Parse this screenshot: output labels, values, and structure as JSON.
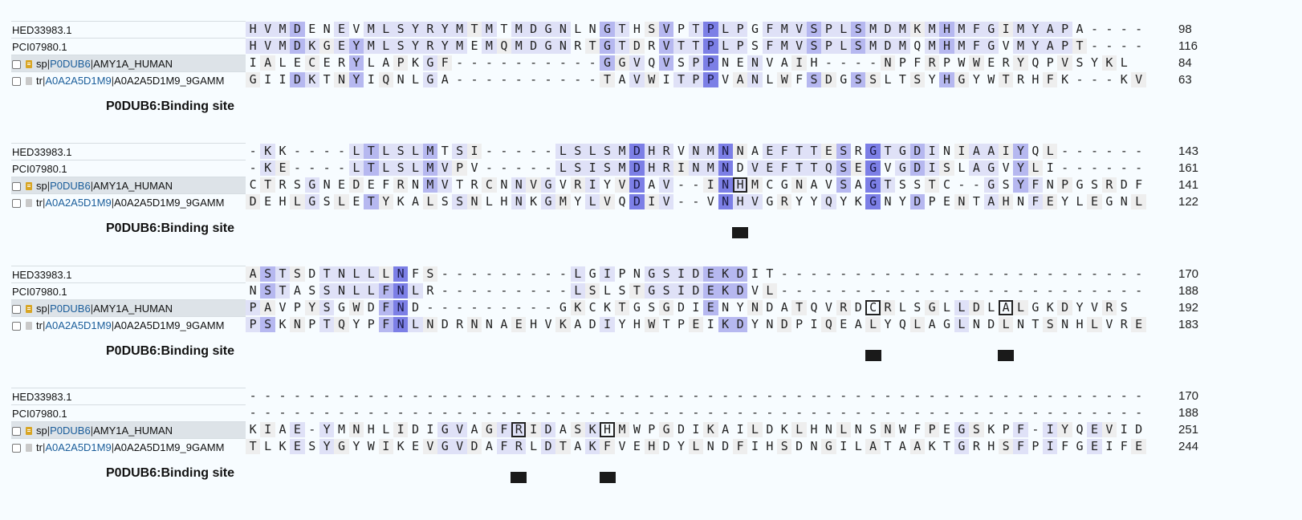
{
  "binding_site_label": "P0DUB6:Binding site",
  "blocks": [
    {
      "rows": [
        {
          "type": "plain",
          "label": "HED33983.1",
          "seq": "HVMDENEVMLSYRYMTMTMDGNLNGTHSVPTPLPGFMVSPLSMDMKMHMFGIMYAPA----",
          "end": "98"
        },
        {
          "type": "plain",
          "label": "PCI07980.1",
          "seq": "HVMDKGEYMLSYRYMEMQMDGNRTGTDRVTTPLPSFMVSPLSMDMQMHMFGVMYAPT----",
          "end": "116"
        },
        {
          "type": "sp",
          "db": "sp",
          "acc": "P0DUB6",
          "name": "AMY1A_HUMAN",
          "seq": "IALECERYLAPKGF----------GGVQVSPPNENVAIH----NPFRPWWERYQPVSYKL",
          "end": "84"
        },
        {
          "type": "tr",
          "db": "tr",
          "acc": "A0A2A5D1M9",
          "name": "A0A2A5D1M9_9GAMM",
          "seq": "GIIDKTNYIQNLGA----------TAVWITPPVANLWFSDGSSLTSYHGYWTRHFK---KV",
          "end": "63"
        }
      ],
      "marks": []
    },
    {
      "rows": [
        {
          "type": "plain",
          "label": "HED33983.1",
          "seq": "-KK----LTLSLMTSI-----LSLSMDHRVNMNNAEFTTESRGTGDINIAAIYQL------",
          "end": "143"
        },
        {
          "type": "plain",
          "label": "PCI07980.1",
          "seq": "-KE----LTLSLMVPV-----LSISMDHRINMNDVEFTTQSEGVGDISLAGVYLI------",
          "end": "161"
        },
        {
          "type": "sp",
          "db": "sp",
          "acc": "P0DUB6",
          "name": "AMY1A_HUMAN",
          "seq": "CTRSGNEDEFRNMVTRCNNVGVRIYVDAV--INHMCGNAVSAGTSSTC--GSYFNPGSRDF",
          "end": "141"
        },
        {
          "type": "tr",
          "db": "tr",
          "acc": "A0A2A5D1M9",
          "name": "A0A2A5D1M9_9GAMM",
          "seq": "DEHLGSLETYKALSSNLHNKGMYLVQDIV--VNHVGRYYQYKGNYDPENTAHNFEYLEGNL",
          "end": "122"
        }
      ],
      "marks": [
        33
      ]
    },
    {
      "rows": [
        {
          "type": "plain",
          "label": "HED33983.1",
          "seq": "ASTSDTNLLLNFS---------LGIPNGSIDEKDIT-------------------------",
          "end": "170"
        },
        {
          "type": "plain",
          "label": "PCI07980.1",
          "seq": "NSTASSNLLFNLR---------LSLSTGSIDEKDVL-------------------------",
          "end": "188"
        },
        {
          "type": "sp",
          "db": "sp",
          "acc": "P0DUB6",
          "name": "AMY1A_HUMAN",
          "seq": "PAVPYSGWDFND---------GKCKTGSGDIENYNDATQVRDCRLSGLLDLALGKDYVRS",
          "end": "192"
        },
        {
          "type": "tr",
          "db": "tr",
          "acc": "A0A2A5D1M9",
          "name": "A0A2A5D1M9_9GAMM",
          "seq": "PSKNPTQYPFNLNDRNNAEHVKADIYHWTPEIKDYNDPIQEALYQLAGLNDLNTSNHLVRE",
          "end": "183"
        }
      ],
      "marks": [
        42,
        51
      ]
    },
    {
      "rows": [
        {
          "type": "plain",
          "label": "HED33983.1",
          "seq": "-------------------------------------------------------------",
          "end": "170"
        },
        {
          "type": "plain",
          "label": "PCI07980.1",
          "seq": "-------------------------------------------------------------",
          "end": "188"
        },
        {
          "type": "sp",
          "db": "sp",
          "acc": "P0DUB6",
          "name": "AMY1A_HUMAN",
          "seq": "KIAE-YMNHLIDIGVAGFRIDASKHMWPGDIKAILDKLHNLNSNWFPEGSKPF-IYQEVID",
          "end": "251"
        },
        {
          "type": "tr",
          "db": "tr",
          "acc": "A0A2A5D1M9",
          "name": "A0A2A5D1M9_9GAMM",
          "seq": "TLKESYGYWIKEVGVDAFRLDTAKFVEHDYLNDFIHSDNGILATAAKTGRHSFPIFGEIFE",
          "end": "244"
        }
      ],
      "marks": [
        18,
        24
      ]
    }
  ],
  "colors": {
    "light": "#eeeeee",
    "pale": "#dfe1f7",
    "mid": "#b6b8f0",
    "strong": "#7c7fe6"
  }
}
